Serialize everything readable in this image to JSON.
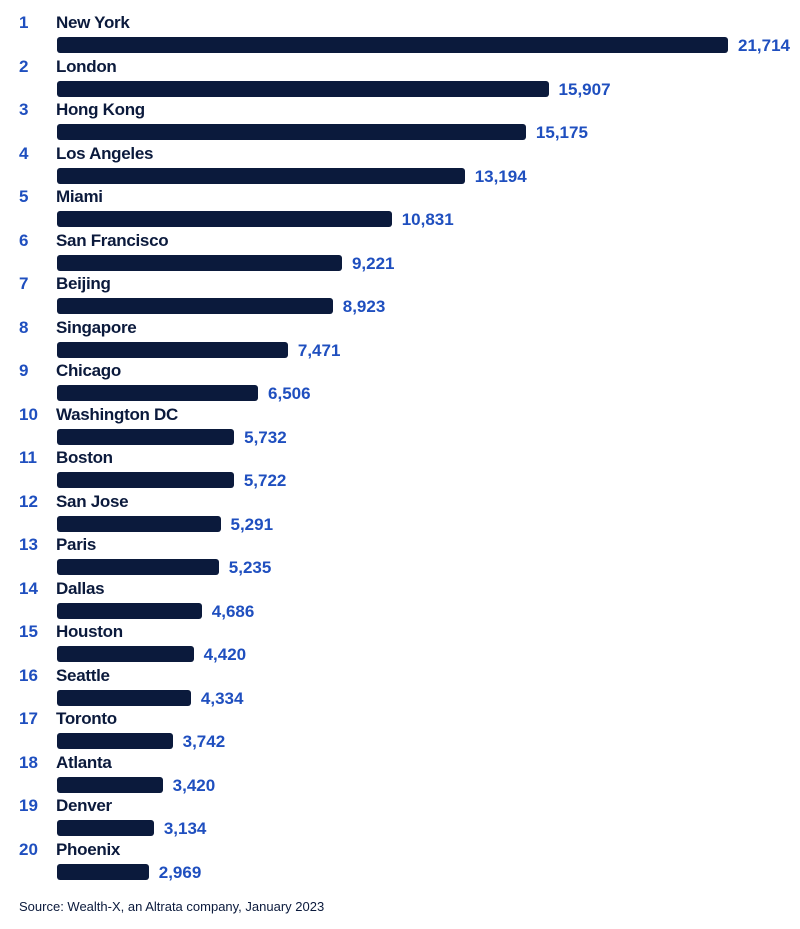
{
  "chart_data": {
    "type": "bar",
    "orientation": "horizontal",
    "ranks": [
      "1",
      "2",
      "3",
      "4",
      "5",
      "6",
      "7",
      "8",
      "9",
      "10",
      "11",
      "12",
      "13",
      "14",
      "15",
      "16",
      "17",
      "18",
      "19",
      "20"
    ],
    "categories": [
      "New York",
      "London",
      "Hong Kong",
      "Los Angeles",
      "Miami",
      "San Francisco",
      "Beijing",
      "Singapore",
      "Chicago",
      "Washington DC",
      "Boston",
      "San Jose",
      "Paris",
      "Dallas",
      "Houston",
      "Seattle",
      "Toronto",
      "Atlanta",
      "Denver",
      "Phoenix"
    ],
    "values": [
      21714,
      15907,
      15175,
      13194,
      10831,
      9221,
      8923,
      7471,
      6506,
      5732,
      5722,
      5291,
      5235,
      4686,
      4420,
      4334,
      3742,
      3420,
      3134,
      2969
    ],
    "value_labels": [
      "21,714",
      "15,907",
      "15,175",
      "13,194",
      "10,831",
      "9,221",
      "8,923",
      "7,471",
      "6,506",
      "5,732",
      "5,722",
      "5,291",
      "5,235",
      "4,686",
      "4,420",
      "4,334",
      "3,742",
      "3,420",
      "3,134",
      "2,969"
    ],
    "xlim": [
      0,
      21714
    ],
    "grid": false,
    "colors": {
      "bar": "#0b1a3c",
      "rank": "#1f4fbf",
      "value": "#1f4fbf",
      "label": "#0b1a3c"
    }
  },
  "source": "Source: Wealth-X, an Altrata company, January 2023"
}
